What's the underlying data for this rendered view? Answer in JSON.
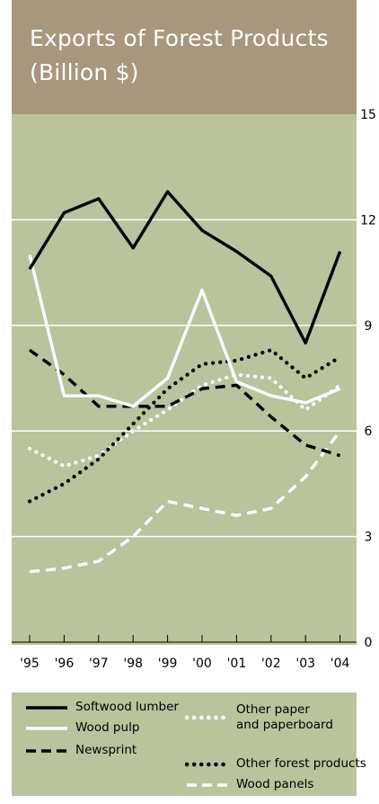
{
  "chart_data": {
    "type": "line",
    "title_lines": [
      "Exports of Forest Products",
      "(Billion $)"
    ],
    "x": [
      "'95",
      "'96",
      "'97",
      "'98",
      "'99",
      "'00",
      "'01",
      "'02",
      "'03",
      "'04"
    ],
    "y_ticks": [
      0,
      3,
      6,
      9,
      12,
      15
    ],
    "ylim": [
      0,
      15
    ],
    "grid": true,
    "legend_position": "bottom",
    "series": [
      {
        "name": "Softwood lumber",
        "color": "#000000",
        "style": "solid",
        "values": [
          10.6,
          12.2,
          12.6,
          11.2,
          12.8,
          11.7,
          11.1,
          10.4,
          8.5,
          11.1
        ]
      },
      {
        "name": "Wood pulp",
        "color": "#ffffff",
        "style": "solid",
        "values": [
          11.0,
          7.0,
          7.0,
          6.7,
          7.5,
          10.0,
          7.4,
          7.0,
          6.8,
          7.2
        ]
      },
      {
        "name": "Newsprint",
        "color": "#000000",
        "style": "dashed",
        "values": [
          8.3,
          7.6,
          6.7,
          6.7,
          6.7,
          7.2,
          7.3,
          6.4,
          5.6,
          5.3
        ]
      },
      {
        "name": "Other paper\nand paperboard",
        "color": "#ffffff",
        "style": "dotted",
        "values": [
          5.5,
          5.0,
          5.3,
          6.0,
          6.6,
          7.3,
          7.6,
          7.5,
          6.6,
          7.3
        ]
      },
      {
        "name": "Other forest products",
        "color": "#000000",
        "style": "dotted",
        "values": [
          4.0,
          4.5,
          5.2,
          6.2,
          7.2,
          7.9,
          8.0,
          8.3,
          7.5,
          8.1
        ]
      },
      {
        "name": "Wood panels",
        "color": "#ffffff",
        "style": "dashed",
        "values": [
          2.0,
          2.1,
          2.3,
          3.0,
          4.0,
          3.8,
          3.6,
          3.8,
          4.7,
          6.0
        ]
      }
    ]
  },
  "colors": {
    "title_background": "#a8977c",
    "plot_background": "#b9c39c",
    "gridline": "#ffffff"
  }
}
